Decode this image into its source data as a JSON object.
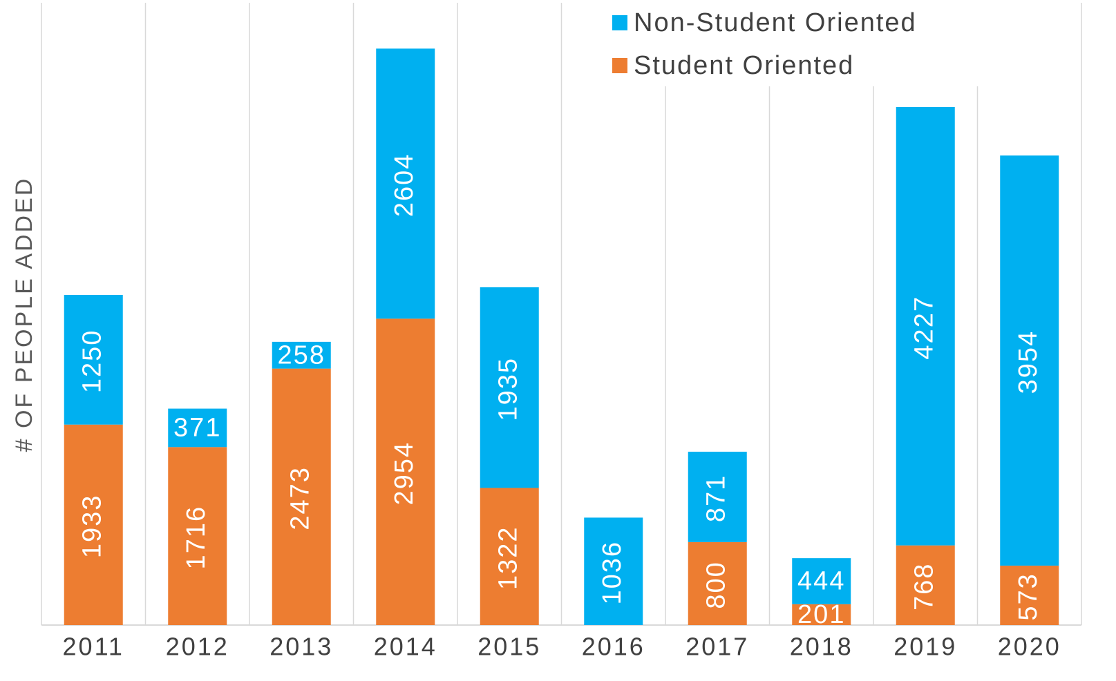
{
  "chart_data": {
    "type": "stacked_bar",
    "y_label": "# OF PEOPLE ADDED",
    "categories": [
      "2011",
      "2012",
      "2013",
      "2014",
      "2015",
      "2016",
      "2017",
      "2018",
      "2019",
      "2020"
    ],
    "series": [
      {
        "name": "Student Oriented",
        "color": "#ED7D31",
        "values": [
          1933,
          1716,
          2473,
          2954,
          1322,
          null,
          800,
          201,
          768,
          573
        ]
      },
      {
        "name": "Non-Student Oriented",
        "color": "#00B0F0",
        "values": [
          1250,
          371,
          258,
          2604,
          1935,
          1036,
          871,
          444,
          4227,
          3954
        ]
      }
    ],
    "ylim": [
      0,
      6000
    ],
    "grid": true,
    "legend": "top-right"
  }
}
